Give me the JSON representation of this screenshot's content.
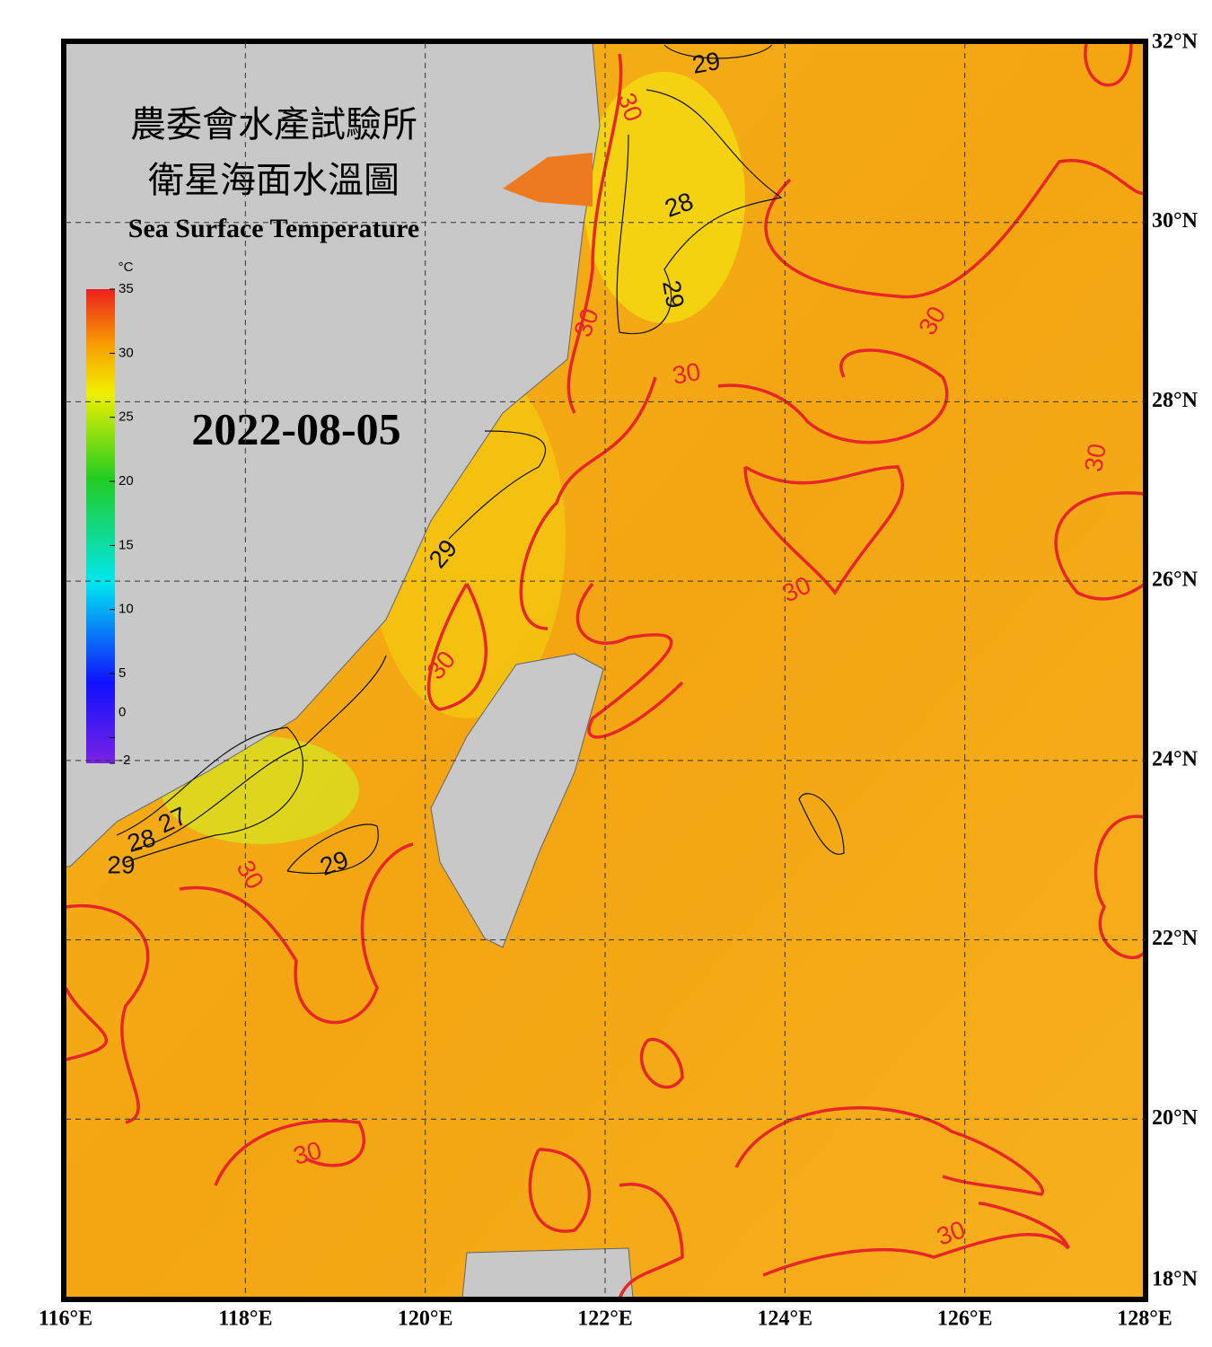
{
  "header": {
    "title_zh_1": "農委會水產試驗所",
    "title_zh_2": "衛星海面水溫圖",
    "title_en": "Sea Surface Temperature",
    "date": "2022-08-05"
  },
  "colorbar": {
    "unit": "°C",
    "range": [
      -2,
      35
    ],
    "ticks": [
      35,
      30,
      25,
      20,
      15,
      10,
      5,
      0,
      -2
    ]
  },
  "map": {
    "lon_range": [
      116,
      128
    ],
    "lat_range": [
      18,
      32
    ],
    "lon_ticks": [
      {
        "value": 116,
        "label": "116°E"
      },
      {
        "value": 118,
        "label": "118°E"
      },
      {
        "value": 120,
        "label": "120°E"
      },
      {
        "value": 122,
        "label": "122°E"
      },
      {
        "value": 124,
        "label": "124°E"
      },
      {
        "value": 126,
        "label": "126°E"
      },
      {
        "value": 128,
        "label": "128°E"
      }
    ],
    "lat_ticks": [
      {
        "value": 18,
        "label": "18°N"
      },
      {
        "value": 20,
        "label": "20°N"
      },
      {
        "value": 22,
        "label": "22°N"
      },
      {
        "value": 24,
        "label": "24°N"
      },
      {
        "value": 26,
        "label": "26°N"
      },
      {
        "value": 28,
        "label": "28°N"
      },
      {
        "value": 30,
        "label": "30°N"
      },
      {
        "value": 32,
        "label": "32°N"
      }
    ],
    "contour_labels": [
      29,
      30,
      28,
      29,
      30,
      30,
      30,
      30,
      29,
      30,
      27,
      28,
      29,
      29,
      30,
      30,
      30,
      30
    ]
  }
}
